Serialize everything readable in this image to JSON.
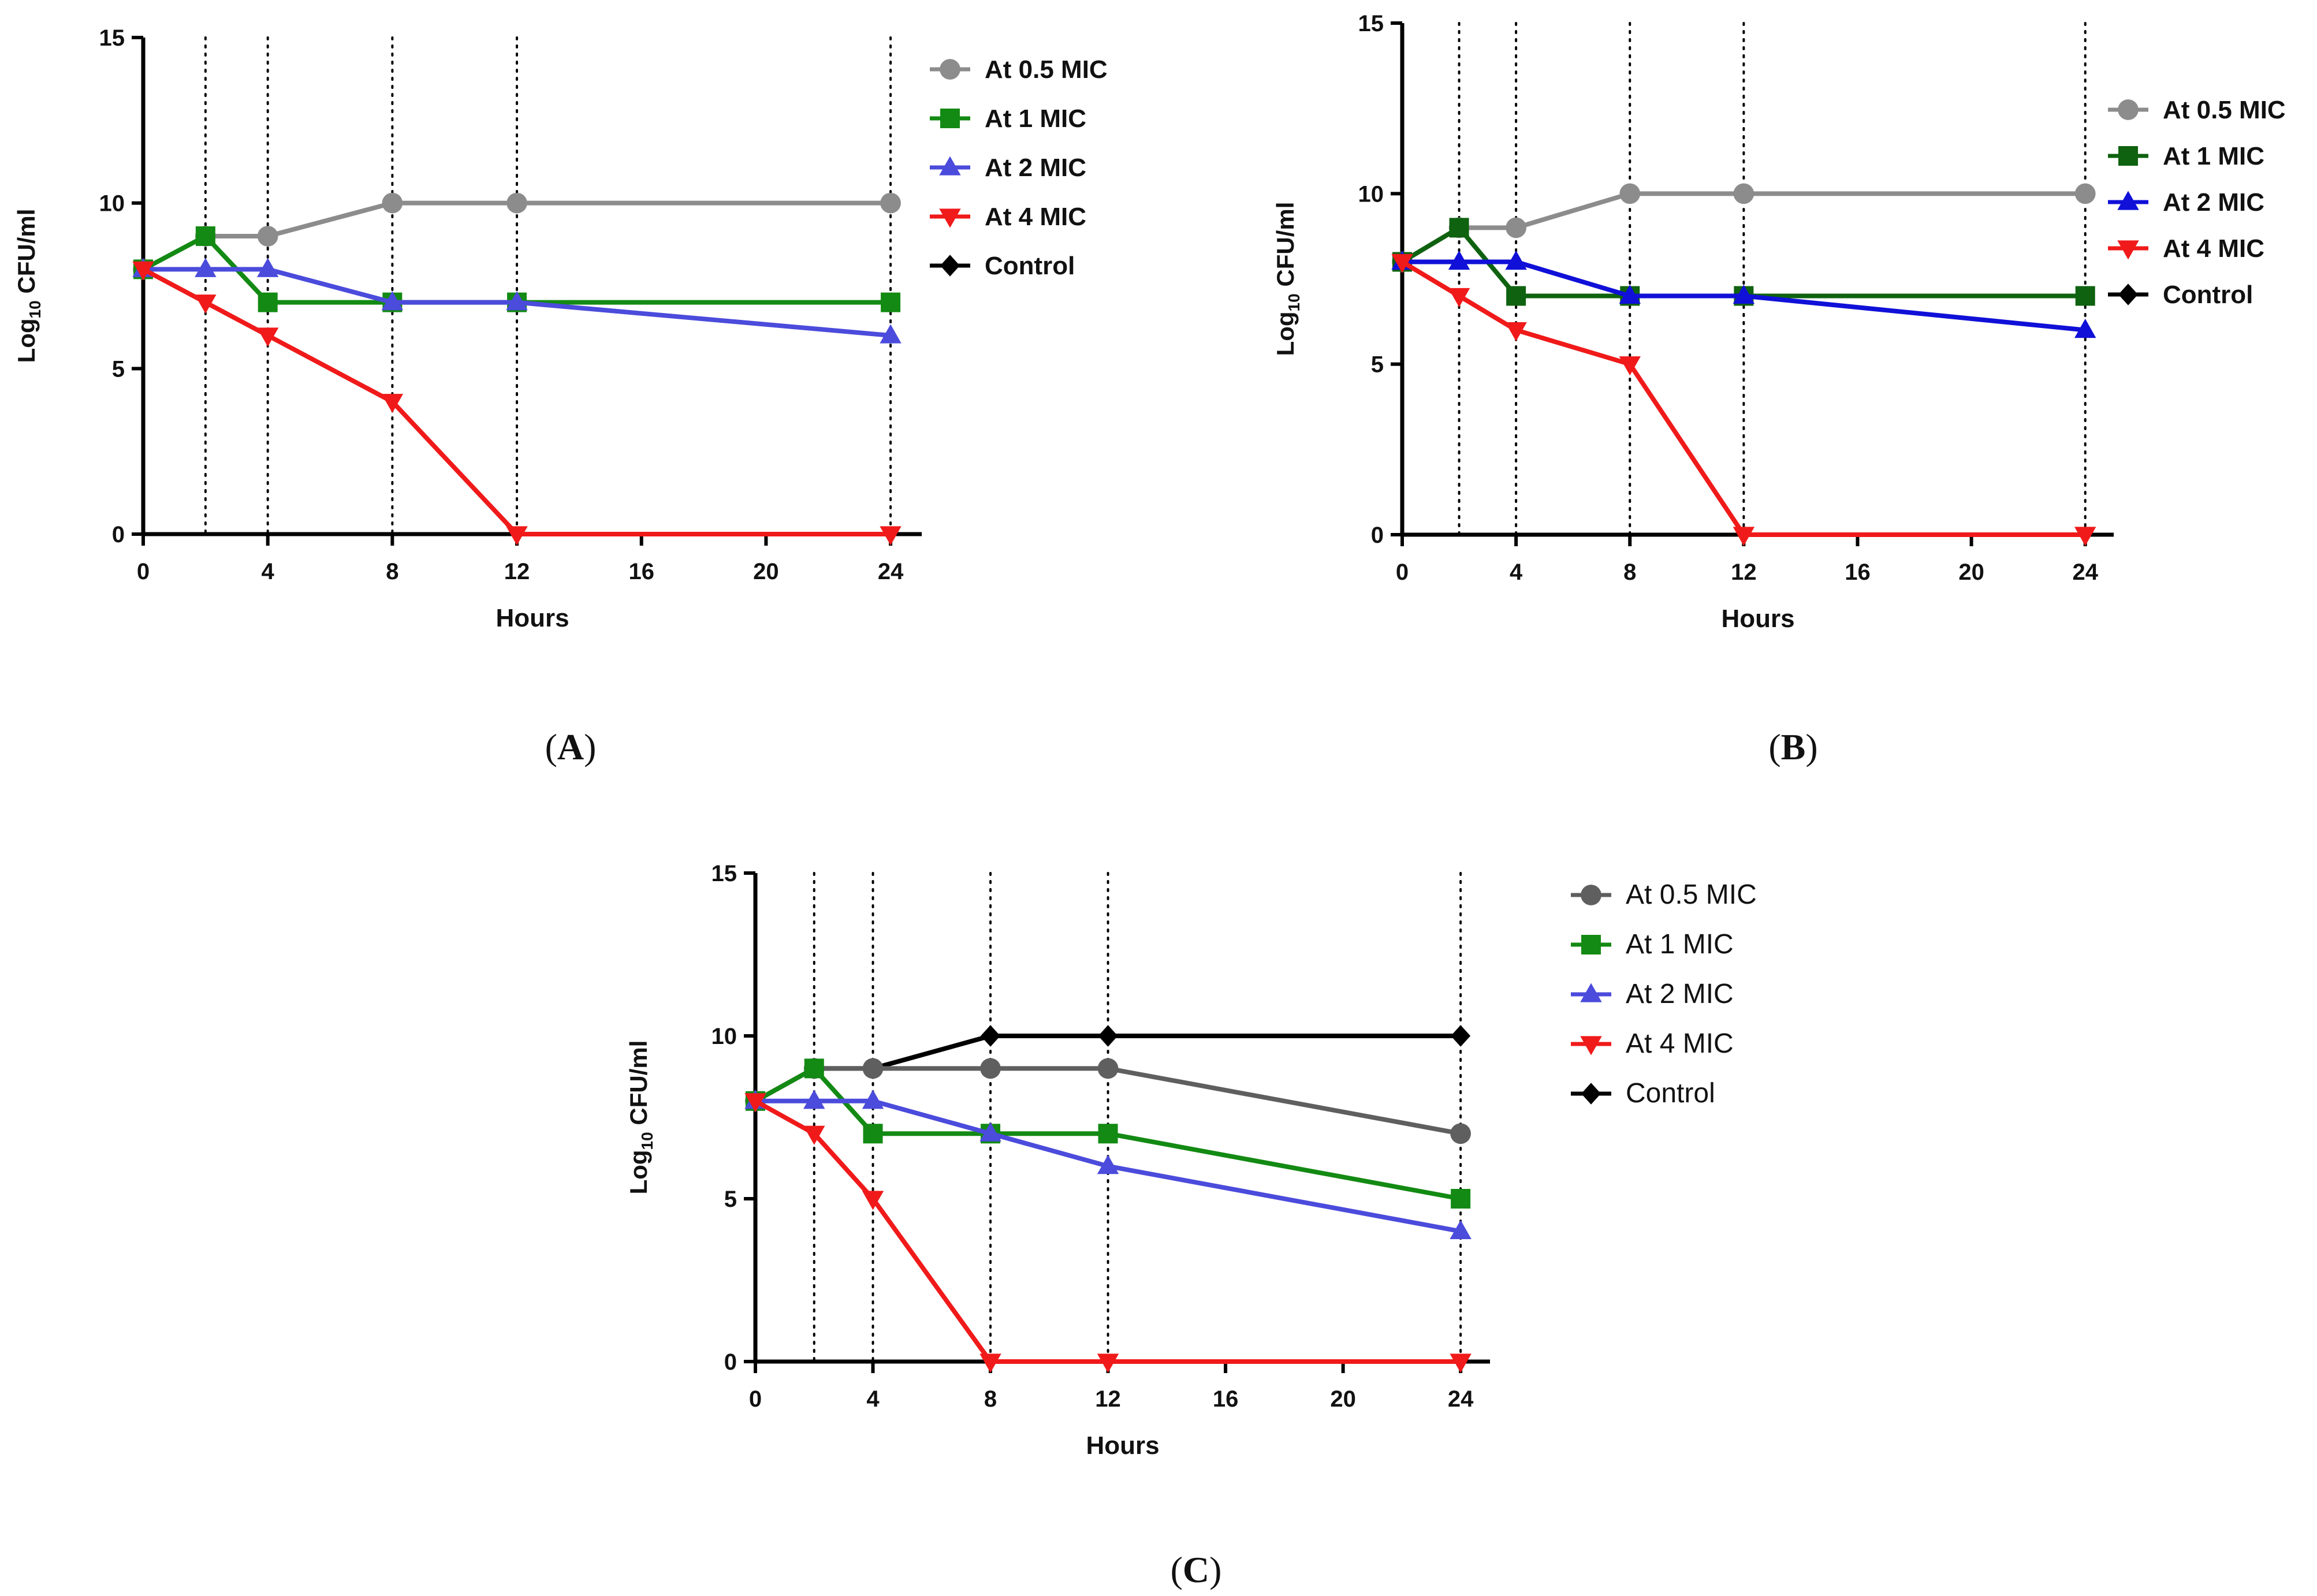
{
  "figure": {
    "panels": [
      "A",
      "B",
      "C"
    ]
  },
  "chart_data": [
    {
      "type": "line",
      "panel": "A",
      "panel_label": "(A)",
      "xlabel": "Hours",
      "ylabel_main": "Log",
      "ylabel_sub": "10",
      "ylabel_rest": " CFU/ml",
      "xlim": [
        0,
        25
      ],
      "ylim": [
        0,
        15
      ],
      "xticks": [
        0,
        4,
        8,
        12,
        16,
        20,
        24
      ],
      "yticks": [
        0,
        5,
        10,
        15
      ],
      "vlines": [
        2,
        4,
        8,
        12,
        24
      ],
      "legend_position": "top-right",
      "legend_weight": "bold",
      "series": [
        {
          "name": "At 0.5 MIC",
          "marker": "circle",
          "color": "#8c8c8c",
          "x": [
            0,
            2,
            4,
            8,
            12,
            24
          ],
          "values": [
            8,
            9,
            9,
            10,
            10,
            10
          ]
        },
        {
          "name": "At 1 MIC",
          "marker": "square",
          "color": "#138a13",
          "x": [
            0,
            2,
            4,
            8,
            12,
            24
          ],
          "values": [
            8,
            9,
            7,
            7,
            7,
            7
          ]
        },
        {
          "name": "At 2 MIC",
          "marker": "triangle-up",
          "color": "#4b4bdc",
          "x": [
            0,
            2,
            4,
            8,
            12,
            24
          ],
          "values": [
            8,
            8,
            8,
            7,
            7,
            6
          ]
        },
        {
          "name": "At 4 MIC",
          "marker": "triangle-down",
          "color": "#f01a1a",
          "x": [
            0,
            2,
            4,
            8,
            12,
            24
          ],
          "values": [
            8,
            7,
            6,
            4,
            0,
            0
          ]
        },
        {
          "name": "Control",
          "marker": "diamond",
          "color": "#000000",
          "x": [],
          "values": []
        }
      ]
    },
    {
      "type": "line",
      "panel": "B",
      "panel_label": "(B)",
      "xlabel": "Hours",
      "ylabel_main": "Log",
      "ylabel_sub": "10",
      "ylabel_rest": " CFU/ml",
      "xlim": [
        0,
        25
      ],
      "ylim": [
        0,
        15
      ],
      "xticks": [
        0,
        4,
        8,
        12,
        16,
        20,
        24
      ],
      "yticks": [
        0,
        5,
        10,
        15
      ],
      "vlines": [
        2,
        4,
        8,
        12,
        24
      ],
      "legend_position": "top-right",
      "legend_weight": "bold",
      "series": [
        {
          "name": "At 0.5 MIC",
          "marker": "circle",
          "color": "#8c8c8c",
          "x": [
            0,
            2,
            4,
            8,
            12,
            24
          ],
          "values": [
            8,
            9,
            9,
            10,
            10,
            10
          ]
        },
        {
          "name": "At 1 MIC",
          "marker": "square",
          "color": "#0f620f",
          "x": [
            0,
            2,
            4,
            8,
            12,
            24
          ],
          "values": [
            8,
            9,
            7,
            7,
            7,
            7
          ]
        },
        {
          "name": "At 2 MIC",
          "marker": "triangle-up",
          "color": "#1010d8",
          "x": [
            0,
            2,
            4,
            8,
            12,
            24
          ],
          "values": [
            8,
            8,
            8,
            7,
            7,
            6
          ]
        },
        {
          "name": "At 4 MIC",
          "marker": "triangle-down",
          "color": "#f01a1a",
          "x": [
            0,
            2,
            4,
            8,
            12,
            24
          ],
          "values": [
            8,
            7,
            6,
            5,
            0,
            0
          ]
        },
        {
          "name": "Control",
          "marker": "diamond",
          "color": "#000000",
          "x": [],
          "values": []
        }
      ]
    },
    {
      "type": "line",
      "panel": "C",
      "panel_label": "(C)",
      "xlabel": "Hours",
      "ylabel_main": "Log",
      "ylabel_sub": "10",
      "ylabel_rest": " CFU/ml",
      "xlim": [
        0,
        25
      ],
      "ylim": [
        0,
        15
      ],
      "xticks": [
        0,
        4,
        8,
        12,
        16,
        20,
        24
      ],
      "yticks": [
        0,
        5,
        10,
        15
      ],
      "vlines": [
        2,
        4,
        8,
        12,
        24
      ],
      "legend_position": "top-right",
      "legend_weight": "normal",
      "series": [
        {
          "name": "Control",
          "marker": "diamond",
          "color": "#000000",
          "x": [
            0,
            2,
            4,
            8,
            12,
            24
          ],
          "values": [
            8,
            9,
            9,
            10,
            10,
            10
          ]
        },
        {
          "name": "At 0.5 MIC",
          "marker": "circle",
          "color": "#5f5f5f",
          "x": [
            0,
            2,
            4,
            8,
            12,
            24
          ],
          "values": [
            8,
            9,
            9,
            9,
            9,
            7
          ]
        },
        {
          "name": "At 1 MIC",
          "marker": "square",
          "color": "#138a13",
          "x": [
            0,
            2,
            4,
            8,
            12,
            24
          ],
          "values": [
            8,
            9,
            7,
            7,
            7,
            5
          ]
        },
        {
          "name": "At 2 MIC",
          "marker": "triangle-up",
          "color": "#4b4bdc",
          "x": [
            0,
            2,
            4,
            8,
            12,
            24
          ],
          "values": [
            8,
            8,
            8,
            7,
            6,
            4
          ]
        },
        {
          "name": "At 4 MIC",
          "marker": "triangle-down",
          "color": "#f01a1a",
          "x": [
            0,
            2,
            4,
            8,
            12,
            24
          ],
          "values": [
            8,
            7,
            5,
            0,
            0,
            0
          ]
        }
      ],
      "legend_order": [
        "At 0.5 MIC",
        "At 1 MIC",
        "At 2 MIC",
        "At 4 MIC",
        "Control"
      ]
    }
  ]
}
